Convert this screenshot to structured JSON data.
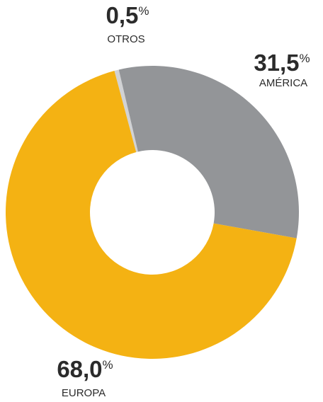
{
  "chart_data": {
    "type": "pie",
    "categories": [
      "OTROS",
      "AMÉRICA",
      "EUROPA"
    ],
    "values": [
      0.5,
      31.5,
      68.0
    ],
    "value_labels": [
      "0,5%",
      "31,5%",
      "68,0%"
    ],
    "colors": [
      "#d1d2d4",
      "#939598",
      "#f4b213"
    ],
    "donut": true
  }
}
